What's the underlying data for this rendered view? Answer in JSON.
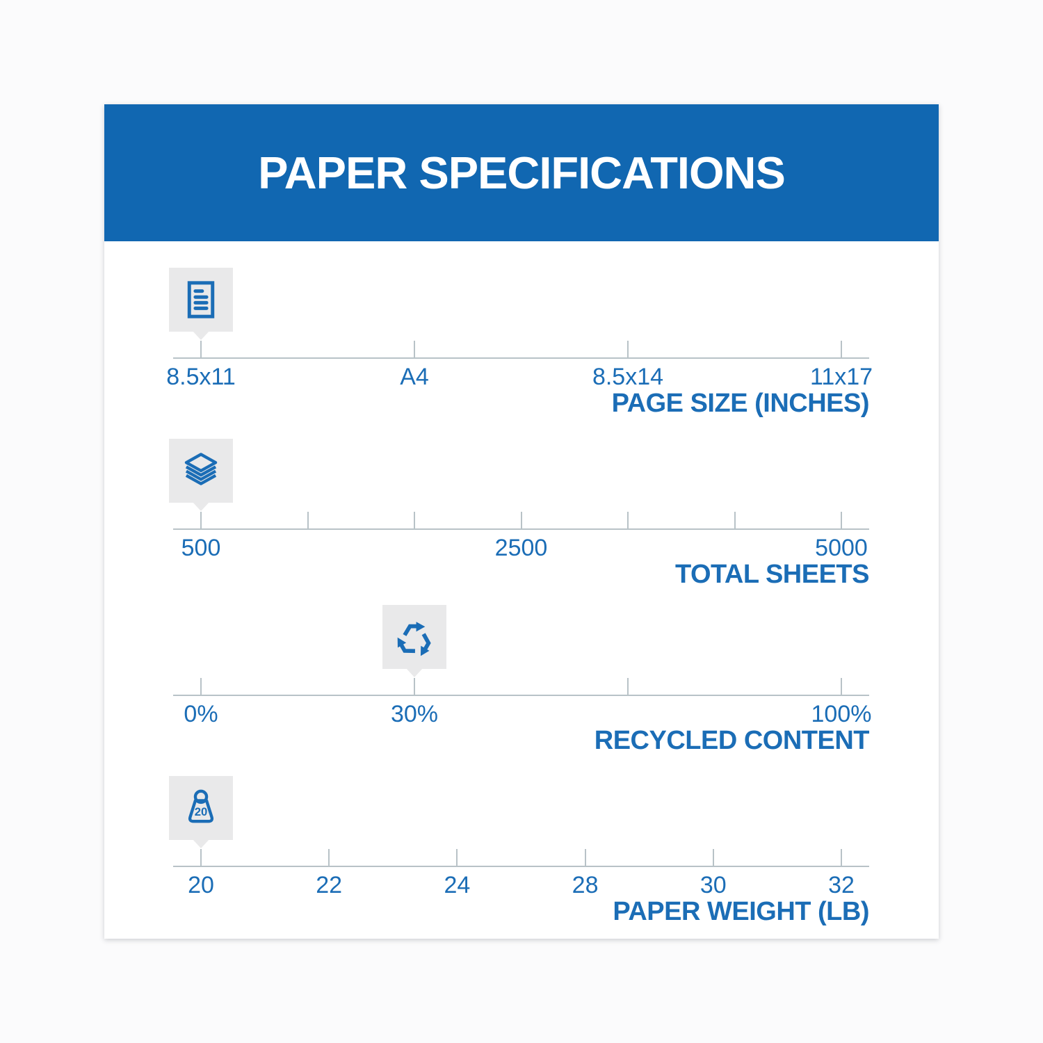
{
  "header": {
    "title": "PAPER SPECIFICATIONS"
  },
  "colors": {
    "banner_blue": "#1167b1",
    "text_blue": "#1b6db6",
    "icon_blue": "#1b6db6",
    "line_gray": "#b8c2c7",
    "badge_gray": "#e9e9ea",
    "card_white": "#ffffff"
  },
  "scales": [
    {
      "id": "page-size",
      "category_label": "PAGE SIZE (INCHES)",
      "icon": "document-icon",
      "tick_labels": [
        "8.5x11",
        "A4",
        "8.5x14",
        "11x17"
      ],
      "marker_tick_index": 0,
      "selected_value": "8.5x11"
    },
    {
      "id": "total-sheets",
      "category_label": "TOTAL SHEETS",
      "icon": "sheets-stack-icon",
      "tick_labels": [
        "500",
        "",
        "",
        "2500",
        "",
        "",
        "5000"
      ],
      "marker_tick_index": 0,
      "selected_value": "500"
    },
    {
      "id": "recycled-content",
      "category_label": "RECYCLED CONTENT",
      "icon": "recycle-icon",
      "tick_labels": [
        "0%",
        "30%",
        "",
        "100%"
      ],
      "marker_tick_index": 1,
      "selected_value": "30%"
    },
    {
      "id": "paper-weight",
      "category_label": "PAPER WEIGHT (LB)",
      "icon": "weight-icon",
      "icon_text": "20",
      "tick_labels": [
        "20",
        "22",
        "24",
        "28",
        "30",
        "32"
      ],
      "marker_tick_index": 0,
      "selected_value": "20"
    }
  ]
}
